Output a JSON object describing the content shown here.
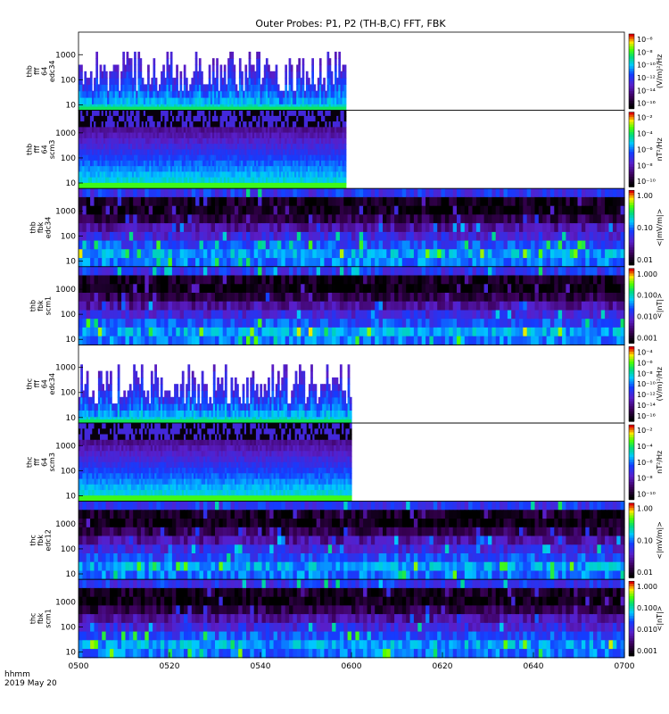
{
  "title": "Outer Probes: P1, P2 (TH-B,C) FFT, FBK",
  "footer": {
    "time_unit": "hhmm",
    "date": "2019 May 20"
  },
  "x_ticks": [
    "0500",
    "0520",
    "0540",
    "0600",
    "0620",
    "0640",
    "0700"
  ],
  "chart_data": [
    {
      "type": "heatmap",
      "panel_label": [
        "thb",
        "fff",
        "64",
        "edc34"
      ],
      "y_scale": "log",
      "y_ticks": [
        "10",
        "100",
        "1000"
      ],
      "color_scale": "log",
      "colorbar_label": "(V/m)²/Hz",
      "colorbar_ticks": [
        "10⁻⁶",
        "10⁻⁸",
        "10⁻¹⁰",
        "10⁻¹²",
        "10⁻¹⁴",
        "10⁻¹⁶"
      ],
      "data_end_fraction": 0.49,
      "style": "spiky"
    },
    {
      "type": "heatmap",
      "panel_label": [
        "thb",
        "fff",
        "64",
        "scm3"
      ],
      "y_scale": "log",
      "y_ticks": [
        "10",
        "100",
        "1000"
      ],
      "color_scale": "log",
      "colorbar_label": "nT²/Hz",
      "colorbar_ticks": [
        "10⁻²",
        "10⁻⁴",
        "10⁻⁶",
        "10⁻⁸",
        "10⁻¹⁰"
      ],
      "data_end_fraction": 0.49,
      "style": "banded"
    },
    {
      "type": "heatmap",
      "panel_label": [
        "thb",
        "fbk",
        "edc34"
      ],
      "y_scale": "log",
      "y_ticks": [
        "10",
        "100",
        "1000"
      ],
      "color_scale": "log",
      "colorbar_label": "<|mV/m|>",
      "colorbar_ticks": [
        "1.00",
        "0.10",
        "0.01"
      ],
      "data_end_fraction": 1.0,
      "style": "fbk"
    },
    {
      "type": "heatmap",
      "panel_label": [
        "thb",
        "fbk",
        "scm1"
      ],
      "y_scale": "log",
      "y_ticks": [
        "10",
        "100",
        "1000"
      ],
      "color_scale": "log",
      "colorbar_label": "<|nT|>",
      "colorbar_ticks": [
        "1.000",
        "0.100",
        "0.010",
        "0.001"
      ],
      "data_end_fraction": 1.0,
      "style": "fbk"
    },
    {
      "type": "heatmap",
      "panel_label": [
        "thc",
        "fff",
        "64",
        "edc34"
      ],
      "y_scale": "log",
      "y_ticks": [
        "10",
        "100",
        "1000"
      ],
      "color_scale": "log",
      "colorbar_label": "(V/m)²/Hz",
      "colorbar_ticks": [
        "10⁻⁴",
        "10⁻⁶",
        "10⁻⁸",
        "10⁻¹⁰",
        "10⁻¹²",
        "10⁻¹⁴",
        "10⁻¹⁶"
      ],
      "data_end_fraction": 0.5,
      "style": "spiky"
    },
    {
      "type": "heatmap",
      "panel_label": [
        "thc",
        "fff",
        "64",
        "scm3"
      ],
      "y_scale": "log",
      "y_ticks": [
        "10",
        "100",
        "1000"
      ],
      "color_scale": "log",
      "colorbar_label": "nT²/Hz",
      "colorbar_ticks": [
        "10⁻²",
        "10⁻⁴",
        "10⁻⁶",
        "10⁻⁸",
        "10⁻¹⁰"
      ],
      "data_end_fraction": 0.5,
      "style": "banded"
    },
    {
      "type": "heatmap",
      "panel_label": [
        "thc",
        "fbk",
        "edc12"
      ],
      "y_scale": "log",
      "y_ticks": [
        "10",
        "100",
        "1000"
      ],
      "color_scale": "log",
      "colorbar_label": "<|mV/m|>",
      "colorbar_ticks": [
        "1.00",
        "0.10",
        "0.01"
      ],
      "data_end_fraction": 1.0,
      "style": "fbk"
    },
    {
      "type": "heatmap",
      "panel_label": [
        "thc",
        "fbk",
        "scm1"
      ],
      "y_scale": "log",
      "y_ticks": [
        "10",
        "100",
        "1000"
      ],
      "color_scale": "log",
      "colorbar_label": "<|nT|>",
      "colorbar_ticks": [
        "1.000",
        "0.100",
        "0.010",
        "0.001"
      ],
      "data_end_fraction": 1.0,
      "style": "fbk"
    }
  ]
}
